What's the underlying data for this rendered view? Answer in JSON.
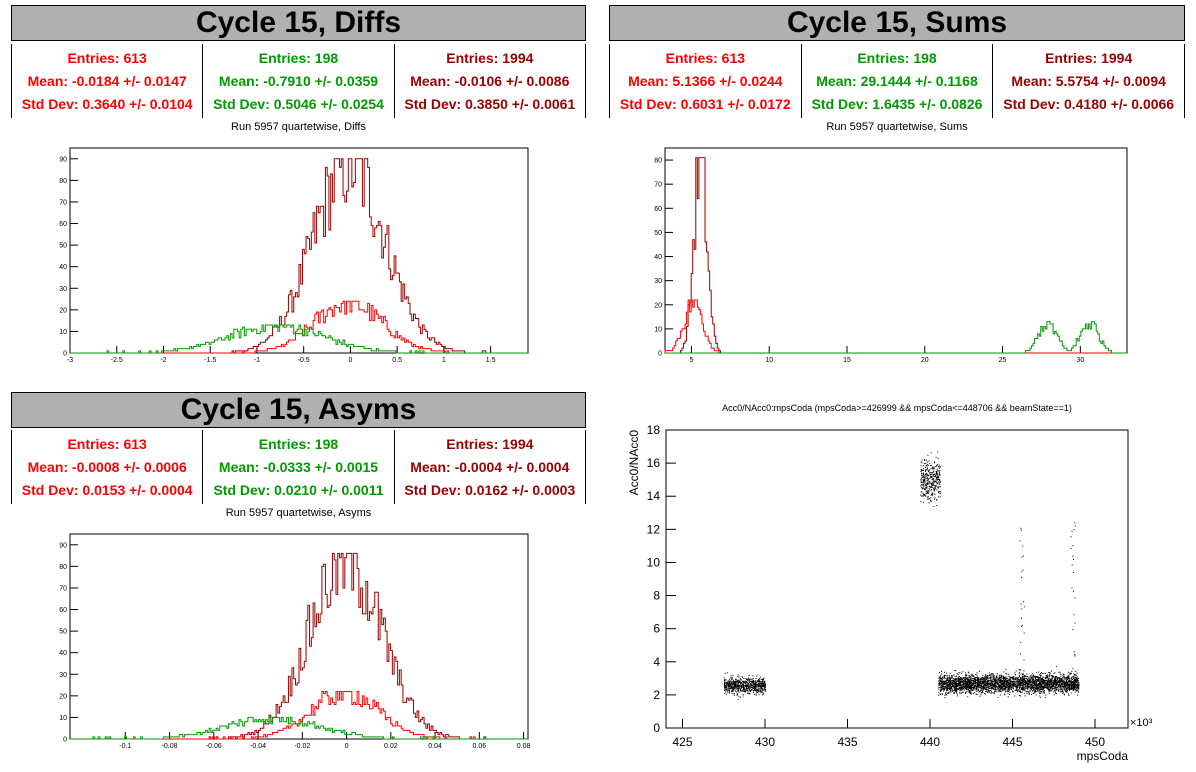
{
  "panels": {
    "diffs": {
      "title": "Cycle 15, Diffs",
      "subtitle": "Run 5957 quartetwise, Diffs",
      "stats": [
        {
          "entries": "Entries: 613",
          "mean": "Mean: -0.0184 +/- 0.0147",
          "std": "Std Dev: 0.3640 +/- 0.0104",
          "color": "#ff0000"
        },
        {
          "entries": "Entries: 198",
          "mean": "Mean: -0.7910 +/- 0.0359",
          "std": "Std Dev: 0.5046 +/- 0.0254",
          "color": "#009900"
        },
        {
          "entries": "Entries: 1994",
          "mean": "Mean: -0.0106 +/- 0.0086",
          "std": "Std Dev: 0.3850 +/- 0.0061",
          "color": "#990000"
        }
      ]
    },
    "sums": {
      "title": "Cycle 15, Sums",
      "subtitle": "Run 5957 quartetwise, Sums",
      "stats": [
        {
          "entries": "Entries: 613",
          "mean": "Mean: 5.1366 +/- 0.0244",
          "std": "Std Dev: 0.6031 +/- 0.0172",
          "color": "#ff0000"
        },
        {
          "entries": "Entries: 198",
          "mean": "Mean: 29.1444 +/- 0.1168",
          "std": "Std Dev: 1.6435 +/- 0.0826",
          "color": "#009900"
        },
        {
          "entries": "Entries: 1994",
          "mean": "Mean: 5.5754 +/- 0.0094",
          "std": "Std Dev: 0.4180 +/- 0.0066",
          "color": "#990000"
        }
      ]
    },
    "asyms": {
      "title": "Cycle 15, Asyms",
      "subtitle": "Run 5957 quartetwise, Asyms",
      "stats": [
        {
          "entries": "Entries: 613",
          "mean": "Mean: -0.0008 +/- 0.0006",
          "std": "Std Dev: 0.0153 +/- 0.0004",
          "color": "#ff0000"
        },
        {
          "entries": "Entries: 198",
          "mean": "Mean: -0.0333 +/- 0.0015",
          "std": "Std Dev: 0.0210 +/- 0.0011",
          "color": "#009900"
        },
        {
          "entries": "Entries: 1994",
          "mean": "Mean: -0.0004 +/- 0.0004",
          "std": "Std Dev: 0.0162 +/- 0.0003",
          "color": "#990000"
        }
      ]
    },
    "scatter": {
      "title": "Acc0/NAcc0:mpsCoda (mpsCoda>=426999 && mpsCoda<=448706 && beamState==1)"
    }
  },
  "chart_data": [
    {
      "type": "histogram",
      "name": "diffs",
      "xlim": [
        -3,
        1.9
      ],
      "ylim": [
        0,
        95
      ],
      "xticks": [
        -3,
        -2.5,
        -2,
        -1.5,
        -1,
        -0.5,
        0,
        0.5,
        1,
        1.5
      ],
      "xtick_labels": [
        "-3",
        "-2.5",
        "-2",
        "-1.5",
        "-1",
        "-0.5",
        "0",
        "0.5",
        "1",
        "1.5"
      ],
      "yticks": [
        0,
        10,
        20,
        30,
        40,
        50,
        60,
        70,
        80,
        90
      ],
      "series": [
        {
          "color": "#990000",
          "mean": -0.0106,
          "std": 0.385,
          "peak": 90
        },
        {
          "color": "#ff0000",
          "mean": -0.0184,
          "std": 0.364,
          "peak": 24
        },
        {
          "color": "#009900",
          "mean": -0.791,
          "std": 0.5046,
          "peak": 13
        }
      ]
    },
    {
      "type": "histogram",
      "name": "sums",
      "xlim": [
        3.3,
        33
      ],
      "ylim": [
        0,
        85
      ],
      "xticks": [
        5,
        10,
        15,
        20,
        25,
        30
      ],
      "xtick_labels": [
        "5",
        "10",
        "15",
        "20",
        "25",
        "30"
      ],
      "yticks": [
        0,
        10,
        20,
        30,
        40,
        50,
        60,
        70,
        80
      ],
      "series": [
        {
          "color": "#990000",
          "mean": 5.5754,
          "std": 0.418,
          "peak": 81
        },
        {
          "color": "#ff0000",
          "mean": 5.1366,
          "std": 0.6031,
          "peak": 22
        },
        {
          "color": "#009900",
          "mean": 29.1444,
          "std": 1.6435,
          "peak": 13,
          "bimodal": [
            27.9,
            30.6
          ]
        }
      ]
    },
    {
      "type": "histogram",
      "name": "asyms",
      "xlim": [
        -0.125,
        0.082
      ],
      "ylim": [
        0,
        95
      ],
      "xticks": [
        -0.1,
        -0.08,
        -0.06,
        -0.04,
        -0.02,
        0,
        0.02,
        0.04,
        0.06,
        0.08
      ],
      "xtick_labels": [
        "-0.1",
        "-0.08",
        "-0.06",
        "-0.04",
        "-0.02",
        "0",
        "0.02",
        "0.04",
        "0.06",
        "0.08"
      ],
      "yticks": [
        0,
        10,
        20,
        30,
        40,
        50,
        60,
        70,
        80,
        90
      ],
      "series": [
        {
          "color": "#990000",
          "mean": -0.0004,
          "std": 0.0162,
          "peak": 86
        },
        {
          "color": "#ff0000",
          "mean": -0.0008,
          "std": 0.0153,
          "peak": 22
        },
        {
          "color": "#009900",
          "mean": -0.0333,
          "std": 0.021,
          "peak": 10
        }
      ]
    },
    {
      "type": "scatter",
      "name": "acc0-vs-mpscoda",
      "xlabel": "mpsCoda",
      "ylabel": "Acc0/NAcc0",
      "x_multiplier_label": "×10³",
      "xlim": [
        424,
        452
      ],
      "ylim": [
        0,
        18
      ],
      "xticks": [
        425,
        430,
        435,
        440,
        445,
        450
      ],
      "xtick_labels": [
        "425",
        "430",
        "435",
        "440",
        "445",
        "450"
      ],
      "yticks": [
        0,
        2,
        4,
        6,
        8,
        10,
        12,
        14,
        16,
        18
      ],
      "ytick_labels": [
        "0",
        "2",
        "4",
        "6",
        "8",
        "10",
        "12",
        "14",
        "16",
        "18"
      ],
      "clusters": [
        {
          "x": [
            427.5,
            430.0
          ],
          "y_center": 2.6,
          "y_spread": 0.45,
          "n": 700
        },
        {
          "x": [
            439.4,
            440.6
          ],
          "y_center": 15.0,
          "y_spread": 1.2,
          "n": 350
        },
        {
          "x": [
            440.5,
            449.0
          ],
          "y_center": 2.7,
          "y_spread": 0.55,
          "n": 3200
        }
      ]
    }
  ]
}
